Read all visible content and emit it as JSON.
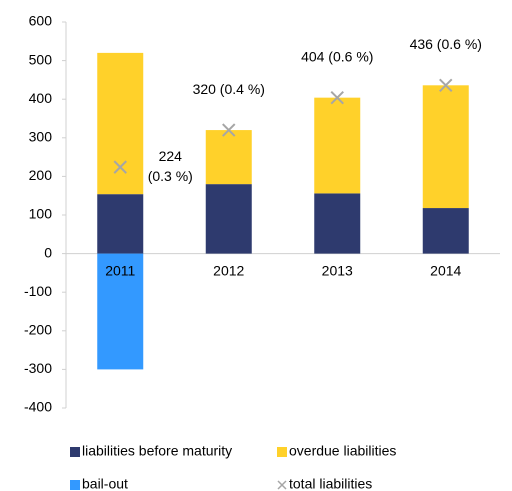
{
  "chart_data": {
    "type": "bar",
    "stacked": true,
    "categories": [
      "2011",
      "2012",
      "2013",
      "2014"
    ],
    "series": [
      {
        "name": "liabilities before maturity",
        "color": "#2e3a6e",
        "type": "bar",
        "values": [
          154,
          180,
          156,
          118
        ]
      },
      {
        "name": "overdue liabilities",
        "color": "#ffd12a",
        "type": "bar",
        "values": [
          366,
          140,
          248,
          318
        ]
      },
      {
        "name": "bail-out",
        "color": "#3399ff",
        "type": "bar",
        "values": [
          -300,
          null,
          null,
          null
        ]
      },
      {
        "name": "total liabilities",
        "color": "#a6a6a6",
        "type": "scatter",
        "marker": "x",
        "values": [
          224,
          320,
          404,
          436
        ],
        "value_labels": [
          "224\n(0.3 %)",
          "320 (0.4 %)",
          "404 (0.6 %)",
          "436 (0.6 %)"
        ]
      }
    ],
    "ylim": [
      -400,
      600
    ],
    "yticks": [
      -400,
      -300,
      -200,
      -100,
      0,
      100,
      200,
      300,
      400,
      500,
      600
    ],
    "grid": false,
    "legend": "bottom"
  }
}
